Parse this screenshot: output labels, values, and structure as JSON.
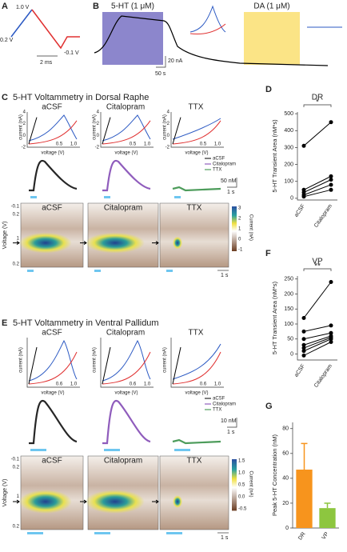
{
  "panels": {
    "a": {
      "letter": "A",
      "labels": [
        "1.0 V",
        "0.2 V",
        "-0.1 V",
        "2 ms"
      ]
    },
    "b": {
      "letter": "B",
      "drug1": "5-HT (1 μM)",
      "drug2": "DA (1 μM)",
      "scale_y": "20 nA",
      "scale_x": "50 s"
    },
    "c": {
      "letter": "C",
      "title": "5-HT Voltammetry in Dorsal Raphe",
      "conditions": [
        "aCSF",
        "Citalopram",
        "TTX"
      ],
      "cv_ylabel": "current (nA)",
      "cv_xlabel": "voltage (V)",
      "cv_yticks": [
        "4",
        "2",
        "0",
        "-2"
      ],
      "cv_xticks": [
        "0.5",
        "1.0"
      ],
      "legend": [
        "aCSF",
        "Citalopram",
        "TTX"
      ],
      "scale_y": "50 nM",
      "scale_x": "1 s",
      "cp_ylabel": "Voltage (V)",
      "cp_yticks": [
        "-0.1",
        "0.2",
        "1",
        "0.2"
      ],
      "colorbar_ticks": [
        "3",
        "2",
        "1",
        "0",
        "-1"
      ],
      "colorbar_label": "Current (nA)",
      "cp_scale_x": "1 s"
    },
    "e": {
      "letter": "E",
      "title": "5-HT Voltammetry in Ventral Pallidum",
      "conditions": [
        "aCSF",
        "Citalopram",
        "TTX"
      ],
      "cv_ylabel": "current (nA)",
      "cv_xlabel": "voltage (V)",
      "cv_yticks": [],
      "cv_xticks": [
        "0.6",
        "1.0"
      ],
      "legend": [
        "aCSF",
        "Citalopram",
        "TTX"
      ],
      "scale_y": "10 nM",
      "scale_x": "1 s",
      "cp_ylabel": "Voltage (V)",
      "cp_yticks": [
        "-0.1",
        "0.2",
        "1",
        "0.2"
      ],
      "colorbar_ticks": [
        "1.5",
        "1.0",
        "0.5",
        "0.0",
        "-0.5"
      ],
      "colorbar_label": "Current (nA)",
      "cp_scale_x": "1 s"
    }
  },
  "chart_data": [
    {
      "type": "paired",
      "label": "D",
      "title": "DR",
      "significance": "*",
      "ylabel": "5-HT Transient Area (nM*s)",
      "categories": [
        "aCSF",
        "Citalopram"
      ],
      "ylim": [
        -10,
        510
      ],
      "yticks": [
        0,
        100,
        200,
        300,
        400,
        500
      ],
      "color": "#000000",
      "series": [
        {
          "values": [
            310,
            450
          ]
        },
        {
          "values": [
            50,
            130
          ]
        },
        {
          "values": [
            35,
            110
          ]
        },
        {
          "values": [
            20,
            80
          ]
        },
        {
          "values": [
            10,
            50
          ]
        }
      ]
    },
    {
      "type": "paired",
      "label": "F",
      "title": "VP",
      "significance": "**",
      "ylabel": "5-HT Transient Area (nM*s)",
      "categories": [
        "aCSF",
        "Citalopram"
      ],
      "ylim": [
        -20,
        260
      ],
      "yticks": [
        0,
        50,
        100,
        150,
        200,
        250
      ],
      "color": "#000000",
      "series": [
        {
          "values": [
            120,
            240
          ]
        },
        {
          "values": [
            75,
            95
          ]
        },
        {
          "values": [
            50,
            70
          ]
        },
        {
          "values": [
            30,
            60
          ]
        },
        {
          "values": [
            20,
            55
          ]
        },
        {
          "values": [
            10,
            50
          ]
        },
        {
          "values": [
            -5,
            40
          ]
        }
      ]
    },
    {
      "type": "bar",
      "label": "G",
      "ylabel": "Peak 5-HT Concentration (nM)",
      "categories": [
        "DR",
        "VP"
      ],
      "values": [
        47,
        16
      ],
      "errors": [
        21,
        4
      ],
      "colors": [
        "#f7941d",
        "#8dc63f"
      ],
      "ylim": [
        0,
        85
      ],
      "yticks": [
        0,
        20,
        40,
        60,
        80
      ]
    }
  ]
}
